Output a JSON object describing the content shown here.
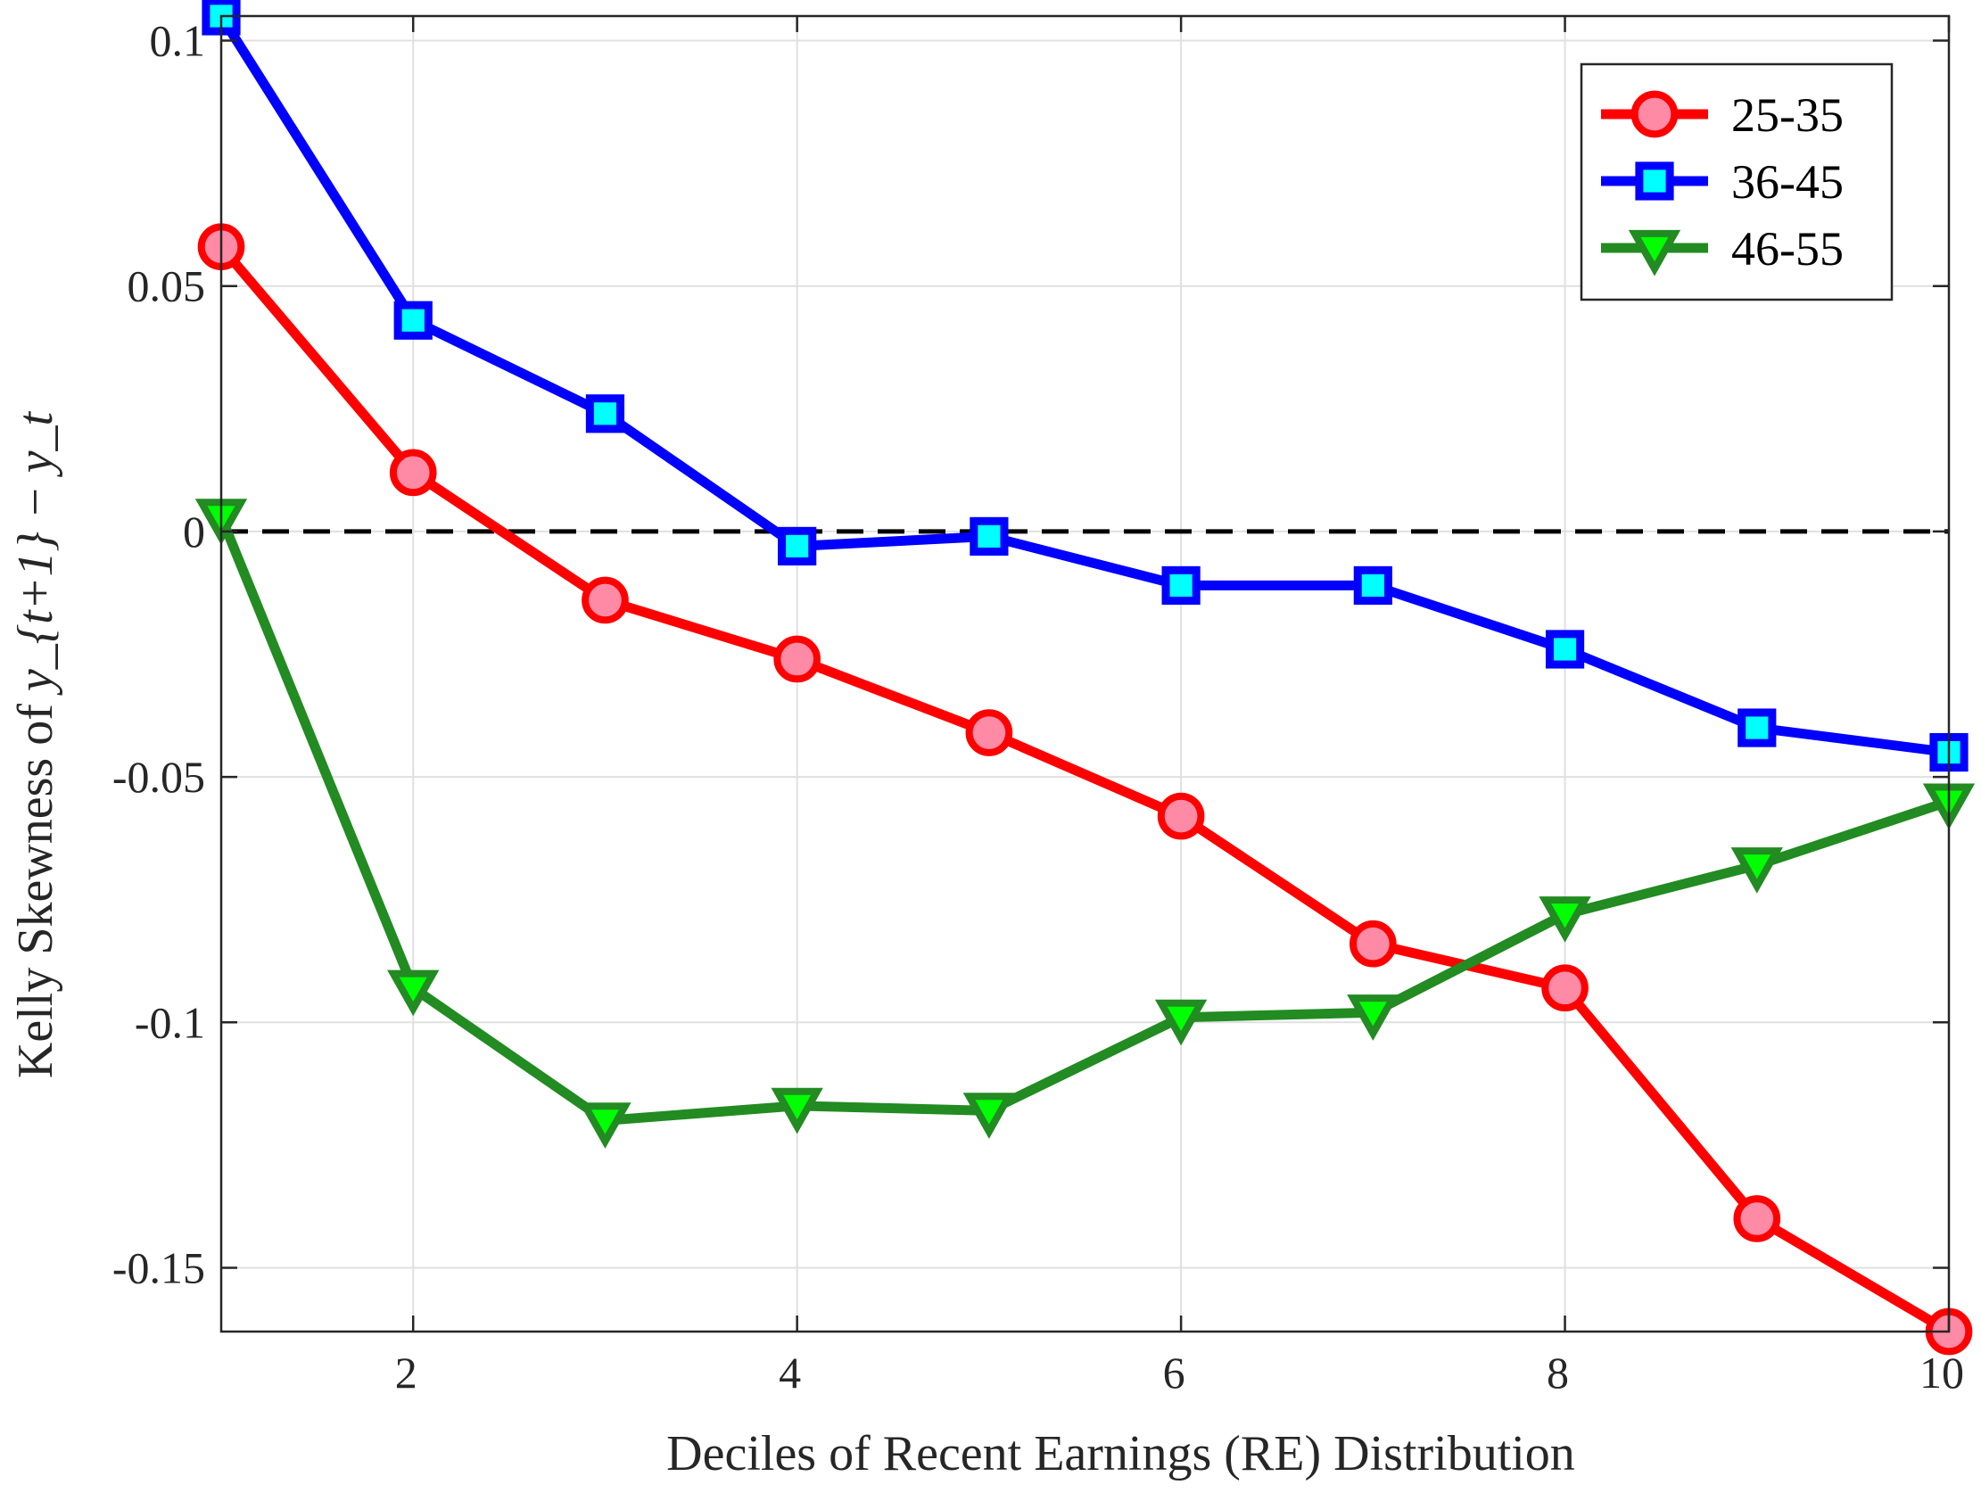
{
  "chart_data": {
    "type": "line",
    "title": "",
    "xlabel": "Deciles of Recent Earnings (RE) Distribution",
    "ylabel": {
      "prefix": "Kelly Skewness of ",
      "math": "y_{t+1} − y_t"
    },
    "xlim": [
      1,
      10
    ],
    "ylim": [
      -0.163,
      0.105
    ],
    "x_ticks": [
      2,
      4,
      6,
      8,
      10
    ],
    "x_tick_labels": [
      "2",
      "4",
      "6",
      "8",
      "10"
    ],
    "y_ticks": [
      -0.15,
      -0.1,
      -0.05,
      0,
      0.05,
      0.1
    ],
    "y_tick_labels": [
      "-0.15",
      "-0.1",
      "-0.05",
      "0",
      "0.05",
      "0.1"
    ],
    "grid": true,
    "reference_line": {
      "y": 0,
      "style": "dashed",
      "color": "#000000"
    },
    "legend_position": "top-right",
    "x": [
      1,
      2,
      3,
      4,
      5,
      6,
      7,
      8,
      9,
      10
    ],
    "series": [
      {
        "name": "25-35",
        "color": "#ff0000",
        "marker": "circle",
        "marker_fill": "#ff8aa6",
        "values": [
          0.058,
          0.012,
          -0.014,
          -0.026,
          -0.041,
          -0.058,
          -0.084,
          -0.093,
          -0.14,
          -0.163
        ]
      },
      {
        "name": "36-45",
        "color": "#0000ff",
        "marker": "square",
        "marker_fill": "#00ffff",
        "values": [
          0.105,
          0.043,
          0.024,
          -0.003,
          -0.001,
          -0.011,
          -0.011,
          -0.024,
          -0.04,
          -0.045
        ]
      },
      {
        "name": "46-55",
        "color": "#228b22",
        "marker": "triangle-down",
        "marker_fill": "#00ff00",
        "values": [
          0.003,
          -0.093,
          -0.12,
          -0.117,
          -0.118,
          -0.099,
          -0.098,
          -0.078,
          -0.068,
          -0.055
        ]
      }
    ]
  }
}
